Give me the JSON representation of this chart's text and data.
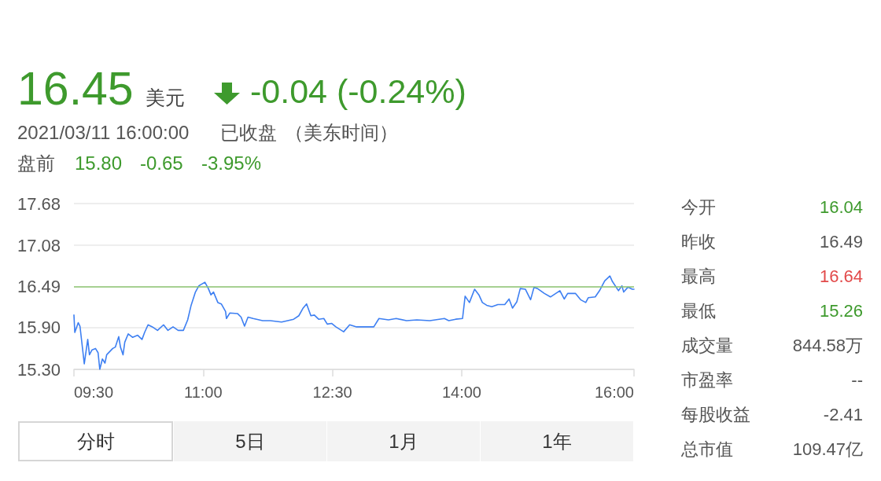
{
  "chart_data": [
    {
      "type": "line",
      "x": [
        9.5,
        9.51,
        9.55,
        9.57,
        9.62,
        9.66,
        9.68,
        9.71,
        9.75,
        9.78,
        9.8,
        9.83,
        9.86,
        9.88,
        9.95,
        9.98,
        10.02,
        10.04,
        10.07,
        10.09,
        10.13,
        10.18,
        10.24,
        10.29,
        10.32,
        10.36,
        10.41,
        10.47,
        10.54,
        10.59,
        10.65,
        10.71,
        10.77,
        10.82,
        10.86,
        10.91,
        10.95,
        11.02,
        11.06,
        11.09,
        11.12,
        11.17,
        11.21,
        11.26,
        11.27,
        11.31,
        11.4,
        11.44,
        11.48,
        11.52,
        11.58,
        11.69,
        11.78,
        11.91,
        12.05,
        12.11,
        12.16,
        12.2,
        12.25,
        12.29,
        12.34,
        12.4,
        12.44,
        12.49,
        12.54,
        12.63,
        12.7,
        12.78,
        12.87,
        12.98,
        13.04,
        13.15,
        13.24,
        13.36,
        13.48,
        13.63,
        13.8,
        13.85,
        13.93,
        14.01,
        14.04,
        14.09,
        14.15,
        14.2,
        14.24,
        14.29,
        14.35,
        14.42,
        14.5,
        14.55,
        14.59,
        14.64,
        14.68,
        14.74,
        14.8,
        14.84,
        14.88,
        14.96,
        15.03,
        15.14,
        15.19,
        15.23,
        15.32,
        15.38,
        15.44,
        15.47,
        15.55,
        15.6,
        15.66,
        15.72,
        15.75,
        15.82,
        15.86,
        15.88,
        15.93,
        15.98,
        16.0
      ],
      "values": [
        16.08,
        15.83,
        15.97,
        15.92,
        15.38,
        15.73,
        15.51,
        15.58,
        15.6,
        15.54,
        15.3,
        15.45,
        15.39,
        15.51,
        15.6,
        15.62,
        15.77,
        15.62,
        15.51,
        15.69,
        15.81,
        15.76,
        15.79,
        15.73,
        15.83,
        15.94,
        15.91,
        15.86,
        15.94,
        15.86,
        15.91,
        15.86,
        15.86,
        16.01,
        16.22,
        16.41,
        16.5,
        16.55,
        16.46,
        16.37,
        16.41,
        16.26,
        16.24,
        16.13,
        16.03,
        16.11,
        16.1,
        16.05,
        15.92,
        16.05,
        16.03,
        16.0,
        16.0,
        15.98,
        16.02,
        16.07,
        16.18,
        16.24,
        16.07,
        16.08,
        16.02,
        16.03,
        15.95,
        15.96,
        15.91,
        15.84,
        15.94,
        15.91,
        15.91,
        15.91,
        16.03,
        16.01,
        16.03,
        16.0,
        16.01,
        16.0,
        16.03,
        16.0,
        16.02,
        16.03,
        16.35,
        16.26,
        16.45,
        16.37,
        16.26,
        16.22,
        16.2,
        16.23,
        16.23,
        16.31,
        16.18,
        16.27,
        16.46,
        16.45,
        16.3,
        16.48,
        16.46,
        16.39,
        16.34,
        16.43,
        16.31,
        16.39,
        16.39,
        16.3,
        16.26,
        16.33,
        16.34,
        16.43,
        16.57,
        16.64,
        16.56,
        16.43,
        16.5,
        16.41,
        16.48,
        16.45,
        16.45
      ],
      "color": "#3d7ff2",
      "xlim": [
        9.5,
        16
      ],
      "xticks": [
        {
          "value": 9.5,
          "label": "09:30"
        },
        {
          "value": 11,
          "label": "11:00"
        },
        {
          "value": 12.5,
          "label": "12:30"
        },
        {
          "value": 14,
          "label": "14:00"
        },
        {
          "value": 16,
          "label": "16:00"
        }
      ],
      "ylim": [
        15.3,
        17.68
      ],
      "yticks": [
        {
          "value": 15.3,
          "label": "15.30"
        },
        {
          "value": 15.9,
          "label": "15.90"
        },
        16.49,
        17.08,
        17.68
      ],
      "grid": "y",
      "marker": "none",
      "line_style": "solid",
      "ref_lines": [
        {
          "axis": "y",
          "value": 16.49,
          "color": "#8ec672"
        }
      ],
      "annotations": [
        "16.45",
        "美元",
        "-0.04 (-0.24%)",
        "2021/03/11 16:00:00",
        "已收盘",
        "（美东时间）",
        "盘前",
        "15.80",
        "-0.65",
        "-3.95%",
        "分时",
        "5日",
        "1月",
        "1年"
      ]
    },
    {
      "type": "other",
      "annotations": [
        "今开",
        "16.04",
        "昨收",
        "16.49",
        "最高",
        "16.64",
        "最低",
        "15.26",
        "成交量",
        "844.58万",
        "市盈率",
        "--",
        "每股收益",
        "-2.41",
        "总市值",
        "109.47亿"
      ]
    }
  ]
}
